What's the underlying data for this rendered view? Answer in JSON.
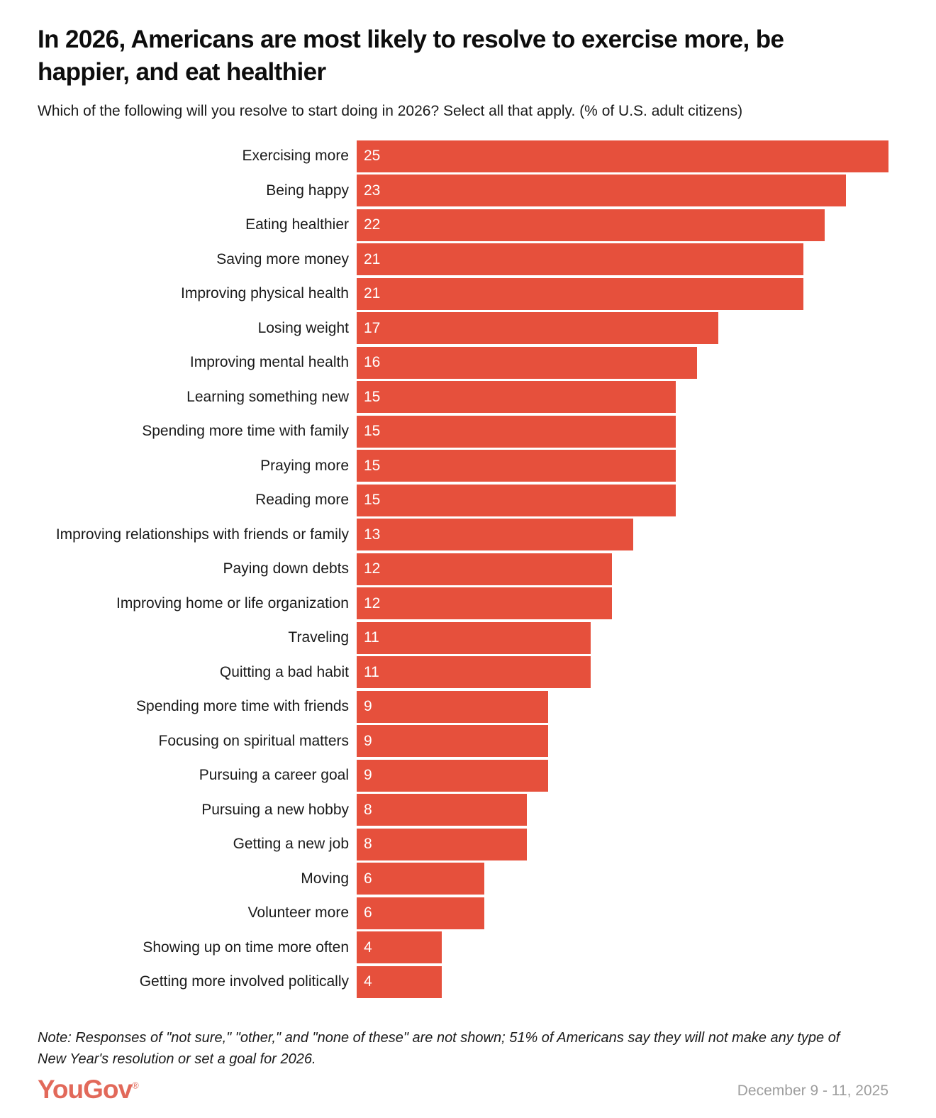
{
  "header": {
    "title": "In 2026, Americans are most likely to resolve to exercise more, be happier, and eat healthier",
    "subtitle": "Which of the following will you resolve to start doing in 2026? Select all that apply. (% of U.S. adult citizens)"
  },
  "chart_data": {
    "type": "bar",
    "orientation": "horizontal",
    "title": "In 2026, Americans are most likely to resolve to exercise more, be happier, and eat healthier",
    "subtitle": "Which of the following will you resolve to start doing in 2026? Select all that apply. (% of U.S. adult citizens)",
    "categories": [
      "Exercising more",
      "Being happy",
      "Eating healthier",
      "Saving more money",
      "Improving physical health",
      "Losing weight",
      "Improving mental health",
      "Learning something new",
      "Spending more time with family",
      "Praying more",
      "Reading more",
      "Improving relationships with friends or family",
      "Paying down debts",
      "Improving home or life organization",
      "Traveling",
      "Quitting a bad habit",
      "Spending more time with friends",
      "Focusing on spiritual matters",
      "Pursuing a career goal",
      "Pursuing a new hobby",
      "Getting a new job",
      "Moving",
      "Volunteer more",
      "Showing up on time more often",
      "Getting more involved politically"
    ],
    "values": [
      25,
      23,
      22,
      21,
      21,
      17,
      16,
      15,
      15,
      15,
      15,
      13,
      12,
      12,
      11,
      11,
      9,
      9,
      9,
      8,
      8,
      6,
      6,
      4,
      4
    ],
    "xlabel": "",
    "ylabel": "",
    "xlim": [
      0,
      25
    ],
    "grid": false,
    "legend": false,
    "value_labels": "inside-left",
    "bar_color": "#E6503C",
    "value_label_color": "#FFFFFF"
  },
  "footer": {
    "note": "Note: Responses of \"not sure,\" \"other,\" and \"none of these\" are not shown; 51% of Americans say they will not make any type of New Year's resolution or set a goal for 2026.",
    "logo_text": "YouGov",
    "logo_registered_mark": "®",
    "logo_color": "#E2695A",
    "date_range": "December 9 - 11, 2025"
  }
}
